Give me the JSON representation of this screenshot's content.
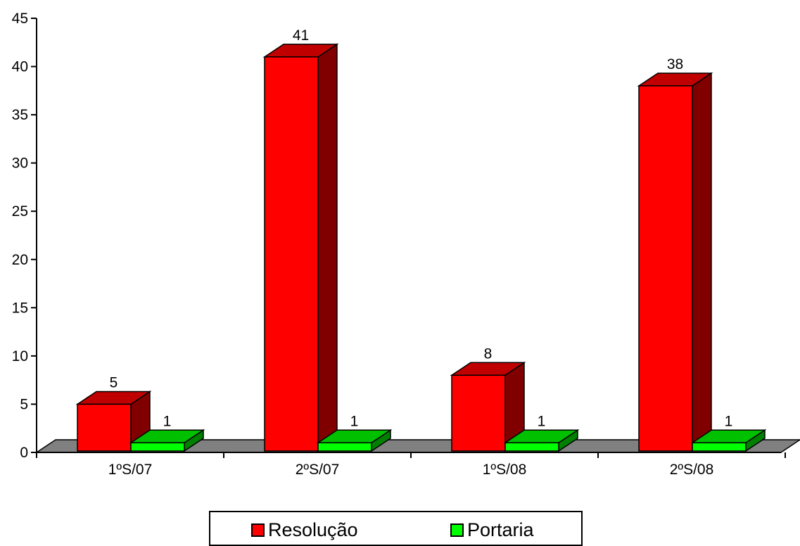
{
  "chart_data": {
    "type": "bar",
    "style": "3d-clustered",
    "categories": [
      "1ºS/07",
      "2ºS/07",
      "1ºS/08",
      "2ºS/08"
    ],
    "series": [
      {
        "name": "Resolução",
        "values": [
          5,
          41,
          8,
          38
        ],
        "color": "#ff0000",
        "side_color": "#800000",
        "top_color": "#c00000"
      },
      {
        "name": "Portaria",
        "values": [
          1,
          1,
          1,
          1
        ],
        "color": "#00ff00",
        "side_color": "#008000",
        "top_color": "#00c000"
      }
    ],
    "y_ticks": [
      "0",
      "5",
      "10",
      "15",
      "20",
      "25",
      "30",
      "35",
      "40",
      "45"
    ],
    "ylim": [
      0,
      45
    ],
    "title": "",
    "xlabel": "",
    "ylabel": "",
    "floor_color": "#808080",
    "legend_position": "bottom"
  },
  "legend": {
    "items": [
      {
        "label": "Resolução",
        "color": "#ff0000"
      },
      {
        "label": "Portaria",
        "color": "#00ff00"
      }
    ]
  }
}
